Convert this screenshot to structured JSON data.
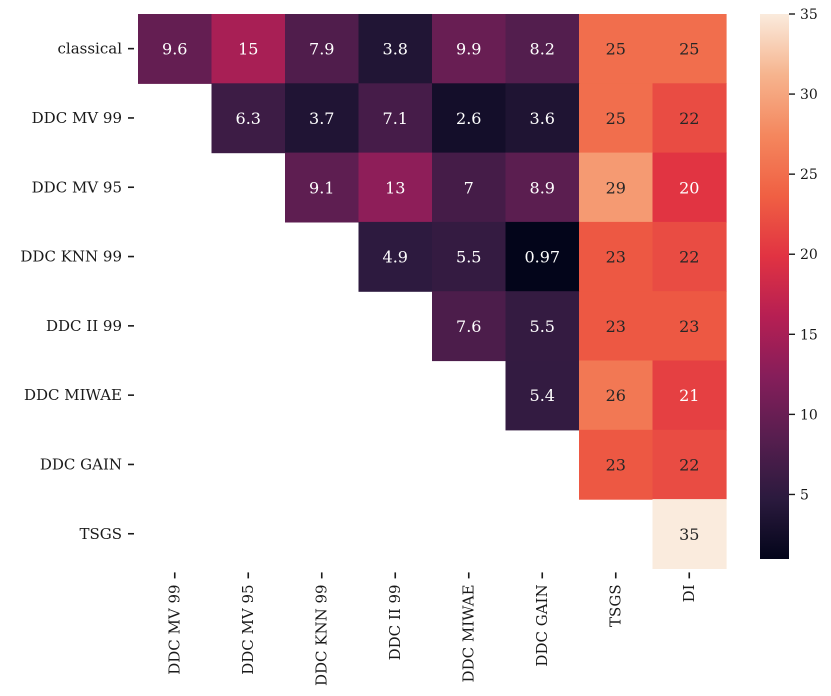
{
  "chart_data": {
    "type": "heatmap",
    "title": "",
    "xlabel": "",
    "ylabel": "",
    "x_categories": [
      "DDC MV 99",
      "DDC MV 95",
      "DDC KNN 99",
      "DDC II 99",
      "DDC MIWAE",
      "DDC GAIN",
      "TSGS",
      "DI"
    ],
    "y_categories": [
      "classical",
      "DDC MV 99",
      "DDC MV 95",
      "DDC KNN 99",
      "DDC II 99",
      "DDC MIWAE",
      "DDC GAIN",
      "TSGS"
    ],
    "values": [
      [
        9.6,
        15,
        7.9,
        3.8,
        9.9,
        8.2,
        25,
        25
      ],
      [
        null,
        6.3,
        3.7,
        7.1,
        2.6,
        3.6,
        25,
        22
      ],
      [
        null,
        null,
        9.1,
        13,
        7,
        8.9,
        29,
        20
      ],
      [
        null,
        null,
        null,
        4.9,
        5.5,
        0.97,
        23,
        22
      ],
      [
        null,
        null,
        null,
        null,
        7.6,
        5.5,
        23,
        23
      ],
      [
        null,
        null,
        null,
        null,
        null,
        5.4,
        26,
        21
      ],
      [
        null,
        null,
        null,
        null,
        null,
        null,
        23,
        22
      ],
      [
        null,
        null,
        null,
        null,
        null,
        null,
        null,
        35
      ]
    ],
    "labels": [
      [
        "9.6",
        "15",
        "7.9",
        "3.8",
        "9.9",
        "8.2",
        "25",
        "25"
      ],
      [
        null,
        "6.3",
        "3.7",
        "7.1",
        "2.6",
        "3.6",
        "25",
        "22"
      ],
      [
        null,
        null,
        "9.1",
        "13",
        "7",
        "8.9",
        "29",
        "20"
      ],
      [
        null,
        null,
        null,
        "4.9",
        "5.5",
        "0.97",
        "23",
        "22"
      ],
      [
        null,
        null,
        null,
        null,
        "7.6",
        "5.5",
        "23",
        "23"
      ],
      [
        null,
        null,
        null,
        null,
        null,
        "5.4",
        "26",
        "21"
      ],
      [
        null,
        null,
        null,
        null,
        null,
        null,
        "23",
        "22"
      ],
      [
        null,
        null,
        null,
        null,
        null,
        null,
        null,
        "35"
      ]
    ],
    "colorbar": {
      "vmin": 0.97,
      "vmax": 35,
      "ticks": [
        5,
        10,
        15,
        20,
        25,
        30,
        35
      ],
      "tick_labels": [
        "5",
        "10",
        "15",
        "20",
        "25",
        "30",
        "35"
      ],
      "colormap": "rocket",
      "colormap_stops": [
        "#03051a",
        "#2b1a3e",
        "#571e4f",
        "#851e5a",
        "#b61f53",
        "#e13342",
        "#f06043",
        "#f4875e",
        "#f6b48e",
        "#faebdd"
      ],
      "text_dark": "#262626",
      "text_light": "#ffffff"
    }
  }
}
